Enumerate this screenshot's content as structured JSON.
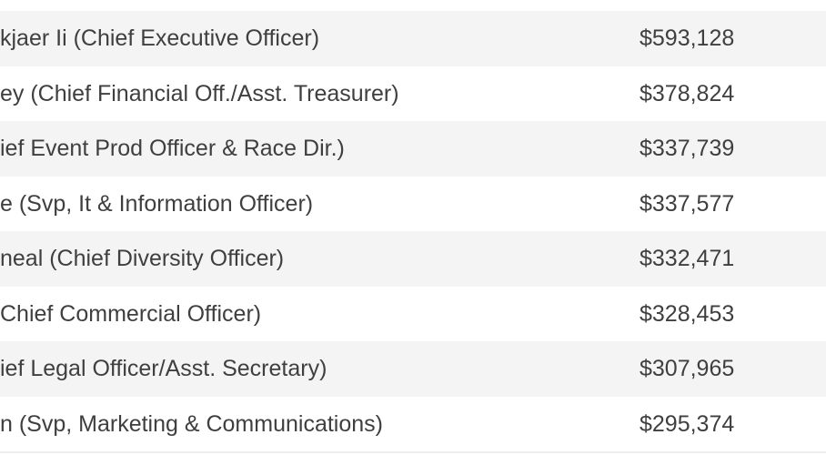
{
  "table": {
    "rows": [
      [
        "kjaer Ii (Chief Executive Officer)",
        "$593,128"
      ],
      [
        "ey (Chief Financial Off./Asst. Treasurer)",
        "$378,824"
      ],
      [
        "ief Event Prod Officer & Race Dir.)",
        "$337,739"
      ],
      [
        "e (Svp, It & Information Officer)",
        "$337,577"
      ],
      [
        "neal (Chief Diversity Officer)",
        "$332,471"
      ],
      [
        "Chief Commercial Officer)",
        "$328,453"
      ],
      [
        "ief Legal Officer/Asst. Secretary)",
        "$307,965"
      ],
      [
        "n (Svp, Marketing & Communications)",
        "$295,374"
      ]
    ]
  }
}
